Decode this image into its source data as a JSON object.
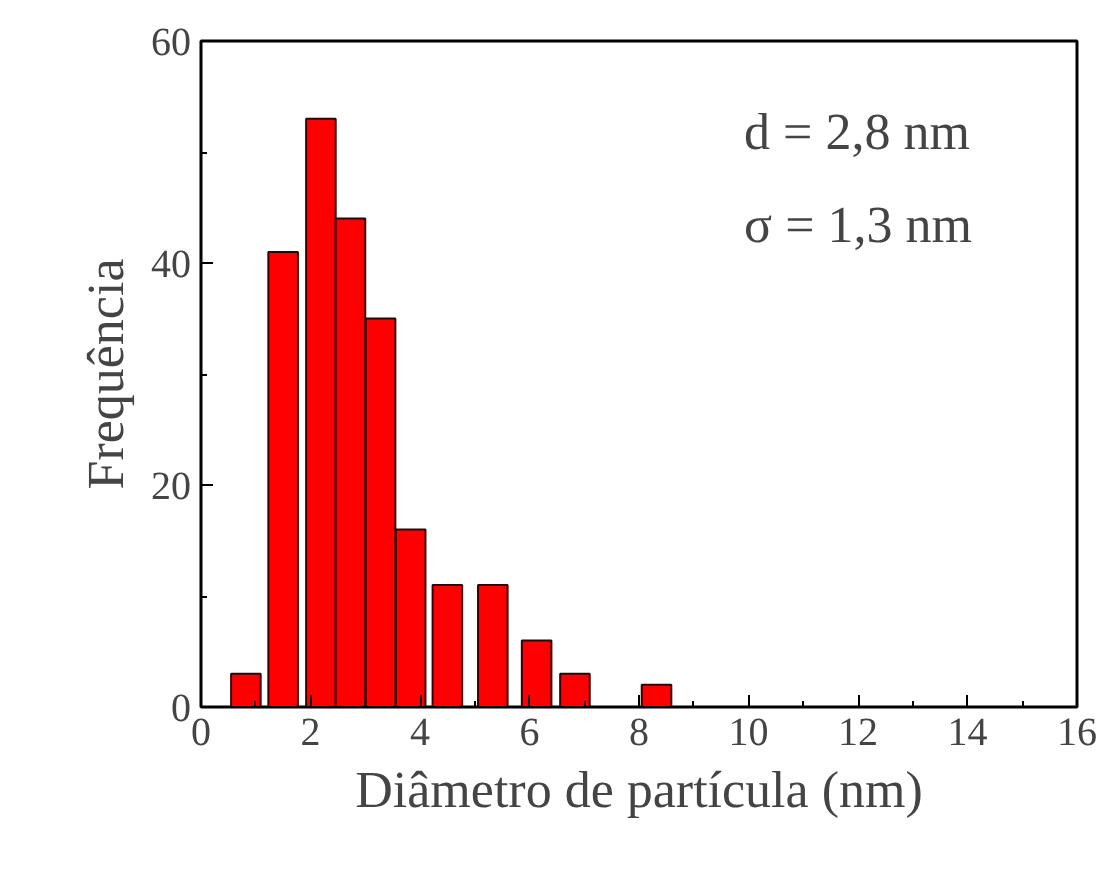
{
  "chart_data": {
    "type": "bar",
    "xlabel": "Diâmetro de partícula (nm)",
    "ylabel": "Frequência",
    "x": [
      0.82,
      1.5,
      2.19,
      2.73,
      3.28,
      3.83,
      4.5,
      5.33,
      6.13,
      6.83,
      8.32
    ],
    "values": [
      3,
      41,
      53,
      44,
      35,
      16,
      11,
      11,
      6,
      3,
      2
    ],
    "color": "#ff0000",
    "xlim": [
      0,
      16
    ],
    "xticks": [
      0,
      2,
      4,
      6,
      8,
      10,
      12,
      14,
      16
    ],
    "ylim": [
      0,
      60
    ],
    "yticks": [
      0,
      20,
      40,
      60
    ],
    "annotations": [
      "d = 2,8 nm",
      "σ = 1,3 nm"
    ]
  }
}
